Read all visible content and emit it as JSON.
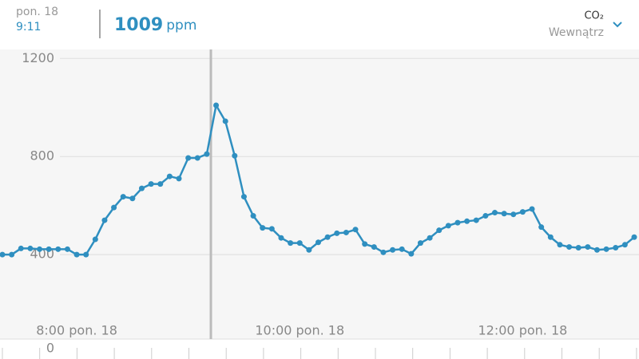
{
  "header": {
    "date": "pon. 18",
    "time": "9:11",
    "value": "1009",
    "unit": "ppm",
    "measure": "CO₂",
    "location": "Wewnątrz"
  },
  "chart_data": {
    "type": "line",
    "color": "#2f8fc0",
    "categories": [
      null,
      null,
      null,
      null,
      null,
      null,
      null,
      null,
      "8:00 pon. 18",
      null,
      null,
      null,
      null,
      null,
      null,
      null,
      null,
      null,
      null,
      null,
      null,
      null,
      null,
      null,
      null,
      null,
      null,
      null,
      null,
      null,
      null,
      null,
      "10:00 pon. 18",
      null,
      null,
      null,
      null,
      null,
      null,
      null,
      null,
      null,
      null,
      null,
      null,
      null,
      null,
      null,
      null,
      null,
      null,
      null,
      null,
      null,
      null,
      null,
      "12:00 pon. 18",
      null,
      null,
      null,
      null,
      null,
      null,
      null,
      null,
      null,
      null,
      null,
      null
    ],
    "values": [
      400,
      400,
      425,
      425,
      422,
      422,
      422,
      422,
      400,
      400,
      462,
      540,
      592,
      636,
      629,
      670,
      688,
      688,
      719,
      710,
      794,
      794,
      810,
      1009,
      944,
      803,
      636,
      558,
      509,
      505,
      468,
      447,
      447,
      419,
      450,
      471,
      487,
      490,
      502,
      443,
      431,
      409,
      419,
      422,
      403,
      447,
      468,
      499,
      518,
      530,
      536,
      540,
      558,
      571,
      567,
      564,
      574,
      586,
      512,
      471,
      440,
      431,
      428,
      431,
      419,
      422,
      428,
      440,
      471
    ],
    "ylim": [
      0,
      1240
    ],
    "yticks": [
      0,
      400,
      800,
      1200
    ],
    "grid": true
  }
}
